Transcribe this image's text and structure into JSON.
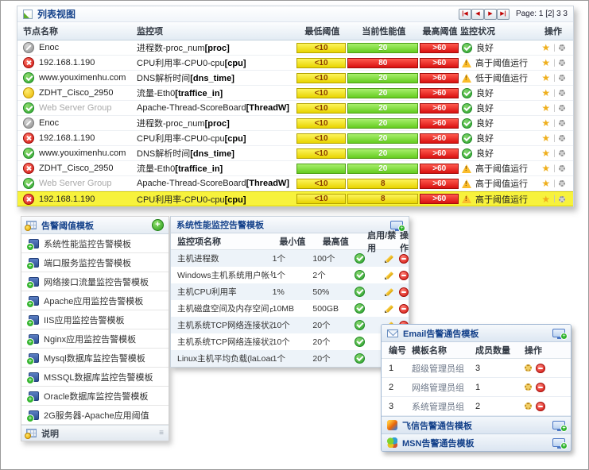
{
  "colors": {
    "header_text": "#15428b",
    "bar_yellow": "#f2e11d",
    "bar_green": "#7ed321",
    "bar_red": "#e01414",
    "highlight_row": "#f7f23c",
    "status_ok_green": "#2aa52e",
    "status_warn_yellow": "#fbbd2b"
  },
  "list_view": {
    "title": "列表视图",
    "pagination": {
      "buttons": [
        "|◀",
        "◀",
        "▶",
        "▶|"
      ],
      "label": "Page: 1 [2] 3 3"
    },
    "columns": [
      "节点名称",
      "监控项",
      "最低阈值",
      "当前性能值",
      "最高阈值",
      "监控状况",
      "操作"
    ],
    "ops_icons": {
      "star": "★",
      "separator": "|",
      "gear": "settings-gear"
    },
    "rows": [
      {
        "node": "Enoc",
        "icon": "off",
        "muted": false,
        "item": "进程数-proc_num",
        "tag": "[proc]",
        "min": "<10",
        "minv": "yellow",
        "val": "20",
        "valv": "green",
        "max": ">60",
        "maxv": "red",
        "status": "良好",
        "sv": "ok",
        "hl": false
      },
      {
        "node": "192.168.1.190",
        "icon": "err",
        "muted": false,
        "item": "CPU利用率-CPU0-cpu",
        "tag": "[cpu]",
        "min": "<10",
        "minv": "yellow",
        "val": "80",
        "valv": "red",
        "max": ">60",
        "maxv": "red",
        "status": "高于阈值运行",
        "sv": "warn",
        "hl": false
      },
      {
        "node": "www.youximenhu.com",
        "icon": "ok",
        "muted": false,
        "item": "DNS解析时间",
        "tag": "[dns_time]",
        "min": "<10",
        "minv": "yellow",
        "val": "20",
        "valv": "green",
        "max": ">60",
        "maxv": "red",
        "status": "低于阈值运行",
        "sv": "warn",
        "hl": false
      },
      {
        "node": "ZDHT_Cisco_2950",
        "icon": "warnball",
        "muted": false,
        "item": "流量-Eth0",
        "tag": "[traffice_in]",
        "min": "<10",
        "minv": "yellow",
        "val": "20",
        "valv": "green",
        "max": ">60",
        "maxv": "red",
        "status": "良好",
        "sv": "ok",
        "hl": false
      },
      {
        "node": "Web Server Group",
        "icon": "ok",
        "muted": true,
        "item": "Apache-Thread-ScoreBoard",
        "tag": "[ThreadW]",
        "min": "<10",
        "minv": "yellow",
        "val": "20",
        "valv": "green",
        "max": ">60",
        "maxv": "red",
        "status": "良好",
        "sv": "ok",
        "hl": false
      },
      {
        "node": "Enoc",
        "icon": "off",
        "muted": false,
        "item": "进程数-proc_num",
        "tag": "[proc]",
        "min": "<10",
        "minv": "yellow",
        "val": "20",
        "valv": "green",
        "max": ">60",
        "maxv": "red",
        "status": "良好",
        "sv": "ok",
        "hl": false
      },
      {
        "node": "192.168.1.190",
        "icon": "err",
        "muted": false,
        "item": "CPU利用率-CPU0-cpu",
        "tag": "[cpu]",
        "min": "<10",
        "minv": "yellow",
        "val": "20",
        "valv": "green",
        "max": ">60",
        "maxv": "red",
        "status": "良好",
        "sv": "ok",
        "hl": false
      },
      {
        "node": "www.youximenhu.com",
        "icon": "ok",
        "muted": false,
        "item": "DNS解析时间",
        "tag": "[dns_time]",
        "min": "<10",
        "minv": "yellow",
        "val": "20",
        "valv": "green",
        "max": ">60",
        "maxv": "red",
        "status": "良好",
        "sv": "ok",
        "hl": false
      },
      {
        "node": "ZDHT_Cisco_2950",
        "icon": "err",
        "muted": false,
        "item": "流量-Eth0",
        "tag": "[traffice_in]",
        "min": "",
        "minv": "green",
        "val": "20",
        "valv": "green",
        "max": ">60",
        "maxv": "red",
        "status": "高于阈值运行",
        "sv": "warn",
        "hl": false
      },
      {
        "node": "Web Server Group",
        "icon": "ok",
        "muted": true,
        "item": "Apache-Thread-ScoreBoard",
        "tag": "[ThreadW]",
        "min": "<10",
        "minv": "yellow",
        "val": "8",
        "valv": "yellow",
        "max": ">60",
        "maxv": "red",
        "status": "高于阈值运行",
        "sv": "warn",
        "hl": false
      },
      {
        "node": "192.168.1.190",
        "icon": "err",
        "muted": false,
        "item": "CPU利用率-CPU0-cpu",
        "tag": "[cpu]",
        "min": "<10",
        "minv": "yellow",
        "val": "8",
        "valv": "yellow",
        "max": ">60",
        "maxv": "red",
        "status": "高于阈值运行",
        "sv": "warn",
        "hl": true
      }
    ]
  },
  "templates_panel": {
    "title": "告警阈值模板",
    "add_button": "+",
    "items": [
      "系统性能监控告警模板",
      "端口服务监控告警模板",
      "网络接口流量监控告警模板",
      "Apache应用监控告警模板",
      "IIS应用监控告警模板",
      "Nginx应用监控告警模板",
      "Mysql数据库监控告警模板",
      "MSSQL数据库监控告警模板",
      "Oracle数据库监控告警模板",
      "2G服务器-Apache应用阈值"
    ],
    "footer": "说明"
  },
  "perf_panel": {
    "title": "系统性能监控告警模板",
    "columns": [
      "监控项名称",
      "最小值",
      "最高值",
      "启用/禁用",
      "操作"
    ],
    "rows": [
      {
        "name": "主机进程数",
        "min": "1个",
        "max": "100个"
      },
      {
        "name": "Windows主机系统用户帐号总数",
        "min": "1个",
        "max": "2个"
      },
      {
        "name": "主机CPU利用率",
        "min": "1%",
        "max": "50%"
      },
      {
        "name": "主机磁盘空间及内存空间占用",
        "min": "10MB",
        "max": "500GB"
      },
      {
        "name": "主机系统TCP网络连接状态",
        "min": "10个",
        "max": "20个"
      },
      {
        "name": "主机系统TCP网络连接状态",
        "min": "10个",
        "max": "20个"
      },
      {
        "name": "Linux主机平均负载(laLoad)",
        "min": "1个",
        "max": "20个"
      }
    ]
  },
  "email_panel": {
    "title": "Email告警通告模板",
    "columns": [
      "编号",
      "模板名称",
      "成员数量",
      "操作"
    ],
    "rows": [
      {
        "id": "1",
        "name": "超级管理员组",
        "count": "3"
      },
      {
        "id": "2",
        "name": "网络管理员组",
        "count": "1"
      },
      {
        "id": "3",
        "name": "系统管理员组",
        "count": "2"
      }
    ],
    "bars": [
      {
        "label": "飞信告警通告模板",
        "icon": "fetion"
      },
      {
        "label": "MSN告警通告模板",
        "icon": "msn"
      }
    ]
  }
}
